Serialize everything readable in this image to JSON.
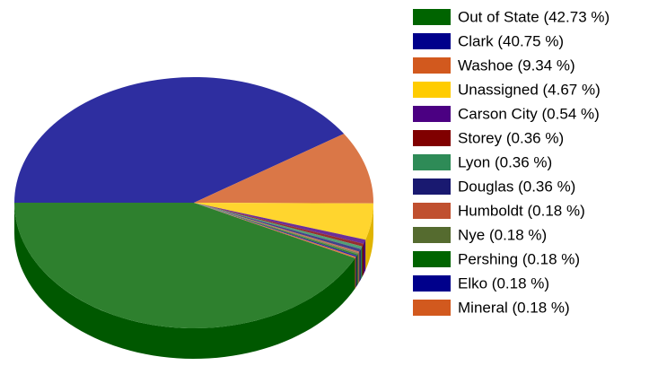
{
  "chart_data": {
    "type": "pie",
    "categories": [
      "Out of State (42.73 %)",
      "Clark (40.75 %)",
      "Washoe (9.34 %)",
      "Unassigned (4.67 %)",
      "Carson City (0.54 %)",
      "Storey (0.36 %)",
      "Lyon (0.36 %)",
      "Douglas (0.36 %)",
      "Humboldt (0.18 %)",
      "Nye (0.18 %)",
      "Pershing (0.18 %)",
      "Elko (0.18 %)",
      "Mineral (0.18 %)"
    ],
    "values": [
      42.73,
      40.75,
      9.34,
      4.67,
      0.54,
      0.36,
      0.36,
      0.36,
      0.18,
      0.18,
      0.18,
      0.18,
      0.18
    ],
    "colors": [
      "#006400",
      "#00008b",
      "#d2591e",
      "#ffcc00",
      "#4b0082",
      "#800000",
      "#2e8b57",
      "#191970",
      "#c0502f",
      "#556b2f",
      "#006400",
      "#00008b",
      "#d2591e"
    ],
    "legend": "right"
  }
}
